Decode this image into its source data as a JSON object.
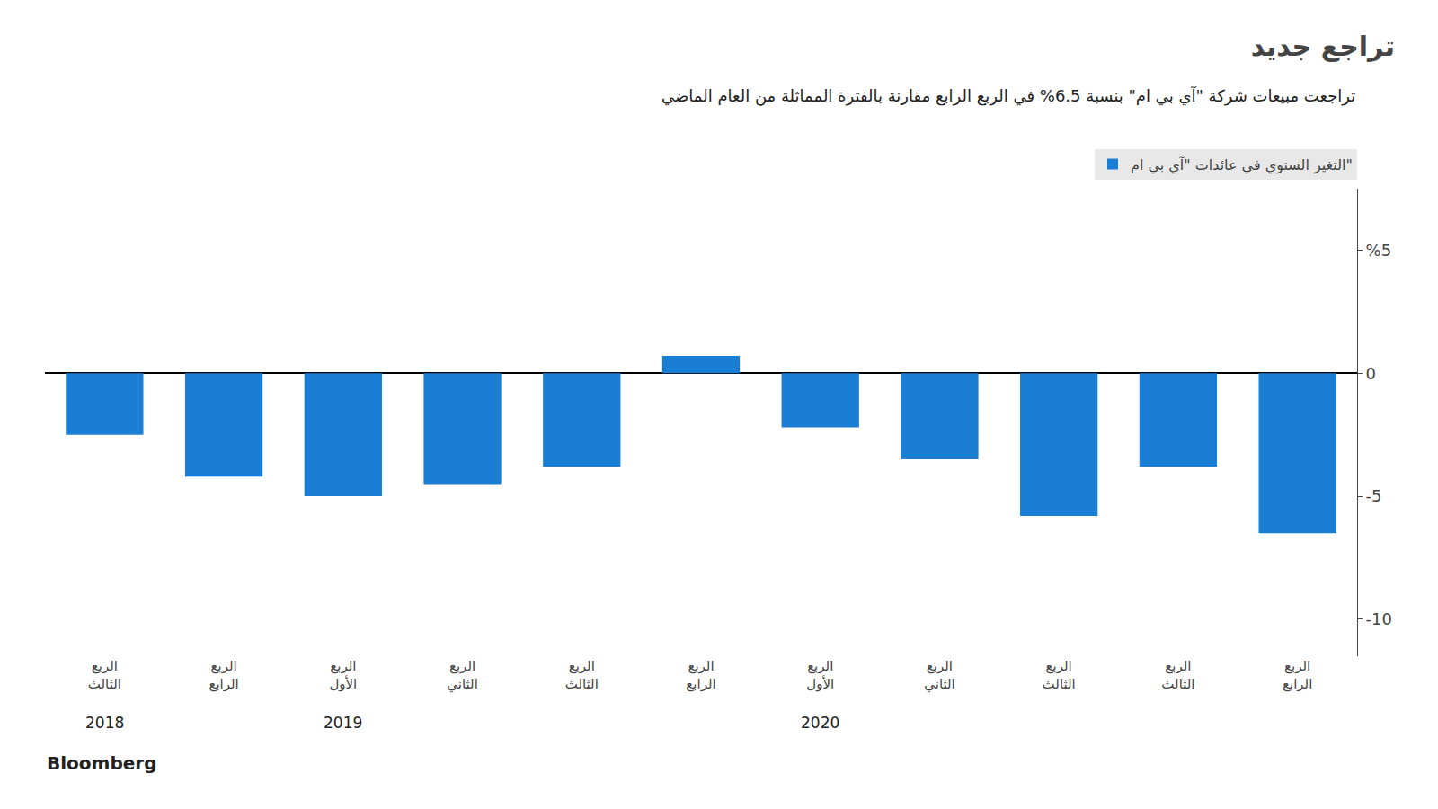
{
  "chart_data": {
    "type": "bar",
    "title": "تراجع جديد",
    "subtitle": "تراجعت مبيعات شركة \"آي بي ام\" بنسبة 6.5% في الربع الرابع مقارنة بالفترة المماثلة من العام الماضي",
    "source": "Bloomberg",
    "categories": [
      "الربع الثالث",
      "الربع الرابع",
      "الربع الأول",
      "الربع الثاني",
      "الربع الثالث",
      "الربع الرابع",
      "الربع الأول",
      "الربع الثاني",
      "الربع الثالث",
      "الربع الثالث",
      "الربع الرابع"
    ],
    "series": [
      {
        "name": "التغير السنوي في عائدات \"آي بي ام\"",
        "color": "#1a7fd4",
        "values": [
          -2.5,
          -4.2,
          -5.0,
          -4.5,
          -3.8,
          0.7,
          -2.2,
          -3.5,
          -5.8,
          -3.8,
          -6.5
        ]
      }
    ],
    "annotations": [
      {
        "text": "2018",
        "x": 0
      },
      {
        "text": "2019",
        "x": 2
      },
      {
        "text": "2020",
        "x": 6
      }
    ],
    "ylim": [
      -11.5,
      7.5
    ],
    "yticks": [
      {
        "value": 5,
        "label": "%5"
      },
      0,
      -5,
      -10
    ],
    "grid": false,
    "legend": "top"
  }
}
